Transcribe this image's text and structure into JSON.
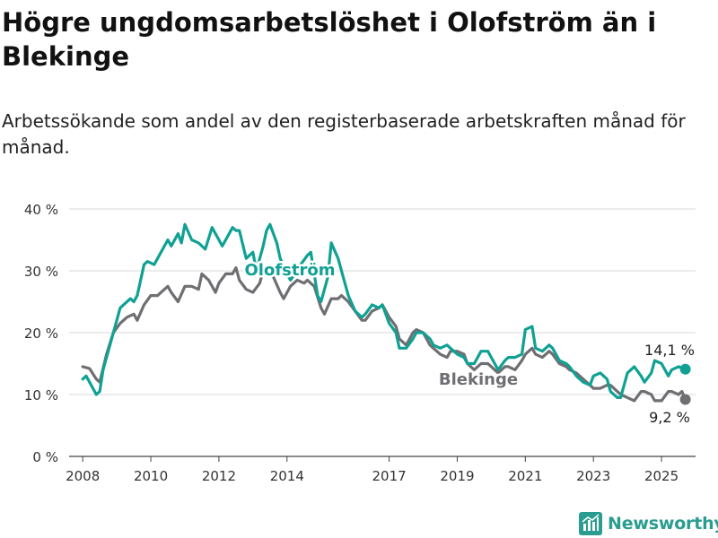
{
  "title": "Högre ungdomsarbetslöshet i Olofström än i Blekinge",
  "subtitle": "Arbetssökande som andel av den registerbaserade arbetskraften månad för månad.",
  "brand": {
    "name": "Newsworthy",
    "icon": "newsworthy-logo-icon"
  },
  "chart_data": {
    "type": "line",
    "x_unit": "year",
    "xlim": [
      2007.6,
      2026.0
    ],
    "ylim": [
      0,
      40
    ],
    "y_ticks": [
      0,
      10,
      20,
      30,
      40
    ],
    "y_tick_labels": [
      "0 %",
      "10 %",
      "20 %",
      "30 %",
      "40 %"
    ],
    "x_ticks": [
      2008,
      2010,
      2012,
      2014,
      2017,
      2019,
      2021,
      2023,
      2025
    ],
    "x_tick_labels": [
      "2008",
      "2010",
      "2012",
      "2014",
      "2017",
      "2019",
      "2021",
      "2023",
      "2025"
    ],
    "grid": "horizontal",
    "series": [
      {
        "name": "Blekinge",
        "color": "#6f6f73",
        "end_label": "9,2 %",
        "points": [
          [
            2008.0,
            14.5
          ],
          [
            2008.2,
            14.2
          ],
          [
            2008.4,
            12.5
          ],
          [
            2008.5,
            12.0
          ],
          [
            2008.7,
            16.5
          ],
          [
            2008.9,
            20.0
          ],
          [
            2009.1,
            21.5
          ],
          [
            2009.3,
            22.5
          ],
          [
            2009.5,
            23.0
          ],
          [
            2009.6,
            22.0
          ],
          [
            2009.8,
            24.5
          ],
          [
            2010.0,
            26.0
          ],
          [
            2010.2,
            26.0
          ],
          [
            2010.3,
            26.5
          ],
          [
            2010.5,
            27.5
          ],
          [
            2010.6,
            26.5
          ],
          [
            2010.8,
            25.0
          ],
          [
            2011.0,
            27.5
          ],
          [
            2011.2,
            27.5
          ],
          [
            2011.4,
            27.0
          ],
          [
            2011.5,
            29.5
          ],
          [
            2011.7,
            28.5
          ],
          [
            2011.9,
            26.5
          ],
          [
            2012.0,
            28.0
          ],
          [
            2012.2,
            29.5
          ],
          [
            2012.4,
            29.5
          ],
          [
            2012.5,
            30.5
          ],
          [
            2012.6,
            28.5
          ],
          [
            2012.8,
            27.0
          ],
          [
            2013.0,
            26.5
          ],
          [
            2013.2,
            28.0
          ],
          [
            2013.3,
            30.0
          ],
          [
            2013.5,
            30.0
          ],
          [
            2013.6,
            29.0
          ],
          [
            2013.8,
            26.5
          ],
          [
            2013.9,
            25.5
          ],
          [
            2014.1,
            27.5
          ],
          [
            2014.3,
            28.5
          ],
          [
            2014.5,
            28.0
          ],
          [
            2014.6,
            28.5
          ],
          [
            2014.8,
            27.5
          ],
          [
            2015.0,
            24.0
          ],
          [
            2015.1,
            23.0
          ],
          [
            2015.3,
            25.5
          ],
          [
            2015.5,
            25.5
          ],
          [
            2015.6,
            26.0
          ],
          [
            2015.8,
            25.0
          ],
          [
            2016.0,
            23.5
          ],
          [
            2016.2,
            22.0
          ],
          [
            2016.3,
            22.0
          ],
          [
            2016.5,
            23.5
          ],
          [
            2016.7,
            24.0
          ],
          [
            2016.8,
            24.5
          ],
          [
            2017.0,
            22.5
          ],
          [
            2017.2,
            21.0
          ],
          [
            2017.3,
            19.0
          ],
          [
            2017.5,
            18.0
          ],
          [
            2017.7,
            20.0
          ],
          [
            2017.8,
            20.5
          ],
          [
            2018.0,
            20.0
          ],
          [
            2018.2,
            18.0
          ],
          [
            2018.3,
            17.5
          ],
          [
            2018.5,
            16.5
          ],
          [
            2018.7,
            16.0
          ],
          [
            2018.8,
            17.0
          ],
          [
            2019.0,
            17.0
          ],
          [
            2019.2,
            16.5
          ],
          [
            2019.3,
            15.0
          ],
          [
            2019.5,
            14.0
          ],
          [
            2019.7,
            15.0
          ],
          [
            2019.9,
            15.0
          ],
          [
            2020.0,
            14.5
          ],
          [
            2020.2,
            13.5
          ],
          [
            2020.4,
            14.5
          ],
          [
            2020.5,
            14.5
          ],
          [
            2020.7,
            14.0
          ],
          [
            2020.9,
            15.5
          ],
          [
            2021.0,
            16.5
          ],
          [
            2021.2,
            17.5
          ],
          [
            2021.3,
            16.5
          ],
          [
            2021.5,
            16.0
          ],
          [
            2021.7,
            17.0
          ],
          [
            2021.8,
            16.5
          ],
          [
            2022.0,
            15.0
          ],
          [
            2022.2,
            14.5
          ],
          [
            2022.3,
            14.0
          ],
          [
            2022.5,
            13.5
          ],
          [
            2022.7,
            12.5
          ],
          [
            2022.9,
            11.5
          ],
          [
            2023.0,
            11.0
          ],
          [
            2023.2,
            11.0
          ],
          [
            2023.4,
            11.5
          ],
          [
            2023.5,
            11.5
          ],
          [
            2023.7,
            10.5
          ],
          [
            2023.8,
            10.0
          ],
          [
            2024.0,
            9.5
          ],
          [
            2024.2,
            9.0
          ],
          [
            2024.4,
            10.5
          ],
          [
            2024.5,
            10.5
          ],
          [
            2024.7,
            10.0
          ],
          [
            2024.8,
            9.0
          ],
          [
            2025.0,
            9.0
          ],
          [
            2025.2,
            10.5
          ],
          [
            2025.3,
            10.5
          ],
          [
            2025.5,
            10.0
          ],
          [
            2025.6,
            10.5
          ],
          [
            2025.7,
            9.2
          ]
        ]
      },
      {
        "name": "Olofström",
        "color": "#10a194",
        "end_label": "14,1 %",
        "points": [
          [
            2008.0,
            12.5
          ],
          [
            2008.1,
            13.0
          ],
          [
            2008.3,
            11.0
          ],
          [
            2008.4,
            10.0
          ],
          [
            2008.5,
            10.5
          ],
          [
            2008.6,
            14.0
          ],
          [
            2008.8,
            18.0
          ],
          [
            2008.9,
            20.0
          ],
          [
            2009.1,
            24.0
          ],
          [
            2009.2,
            24.5
          ],
          [
            2009.4,
            25.5
          ],
          [
            2009.5,
            25.0
          ],
          [
            2009.6,
            26.0
          ],
          [
            2009.8,
            31.0
          ],
          [
            2009.9,
            31.5
          ],
          [
            2010.1,
            31.0
          ],
          [
            2010.2,
            32.0
          ],
          [
            2010.4,
            34.0
          ],
          [
            2010.5,
            35.0
          ],
          [
            2010.6,
            34.0
          ],
          [
            2010.8,
            36.0
          ],
          [
            2010.9,
            34.5
          ],
          [
            2011.0,
            37.5
          ],
          [
            2011.2,
            35.0
          ],
          [
            2011.4,
            34.5
          ],
          [
            2011.5,
            34.0
          ],
          [
            2011.6,
            33.5
          ],
          [
            2011.8,
            37.0
          ],
          [
            2011.9,
            36.0
          ],
          [
            2012.1,
            34.0
          ],
          [
            2012.2,
            35.0
          ],
          [
            2012.4,
            37.0
          ],
          [
            2012.5,
            36.5
          ],
          [
            2012.6,
            36.5
          ],
          [
            2012.8,
            32.0
          ],
          [
            2013.0,
            33.0
          ],
          [
            2013.1,
            30.0
          ],
          [
            2013.3,
            34.0
          ],
          [
            2013.4,
            36.5
          ],
          [
            2013.5,
            37.5
          ],
          [
            2013.7,
            34.5
          ],
          [
            2013.8,
            32.0
          ],
          [
            2014.0,
            29.5
          ],
          [
            2014.1,
            28.5
          ],
          [
            2014.3,
            30.0
          ],
          [
            2014.4,
            31.0
          ],
          [
            2014.6,
            32.5
          ],
          [
            2014.7,
            33.0
          ],
          [
            2014.9,
            26.0
          ],
          [
            2015.0,
            25.0
          ],
          [
            2015.2,
            29.0
          ],
          [
            2015.3,
            34.5
          ],
          [
            2015.5,
            32.0
          ],
          [
            2015.6,
            30.0
          ],
          [
            2015.8,
            26.0
          ],
          [
            2016.0,
            23.5
          ],
          [
            2016.2,
            22.5
          ],
          [
            2016.3,
            23.0
          ],
          [
            2016.5,
            24.5
          ],
          [
            2016.7,
            24.0
          ],
          [
            2016.8,
            24.5
          ],
          [
            2017.0,
            21.5
          ],
          [
            2017.2,
            20.0
          ],
          [
            2017.3,
            17.5
          ],
          [
            2017.5,
            17.5
          ],
          [
            2017.7,
            19.0
          ],
          [
            2017.8,
            20.0
          ],
          [
            2018.0,
            20.0
          ],
          [
            2018.2,
            19.0
          ],
          [
            2018.3,
            18.0
          ],
          [
            2018.5,
            17.5
          ],
          [
            2018.7,
            18.0
          ],
          [
            2018.8,
            17.5
          ],
          [
            2019.0,
            16.5
          ],
          [
            2019.2,
            16.0
          ],
          [
            2019.3,
            15.0
          ],
          [
            2019.5,
            15.0
          ],
          [
            2019.7,
            17.0
          ],
          [
            2019.9,
            17.0
          ],
          [
            2020.0,
            16.0
          ],
          [
            2020.2,
            14.0
          ],
          [
            2020.4,
            15.5
          ],
          [
            2020.5,
            16.0
          ],
          [
            2020.7,
            16.0
          ],
          [
            2020.9,
            16.5
          ],
          [
            2021.0,
            20.5
          ],
          [
            2021.2,
            21.0
          ],
          [
            2021.3,
            17.5
          ],
          [
            2021.5,
            17.0
          ],
          [
            2021.7,
            18.0
          ],
          [
            2021.8,
            17.5
          ],
          [
            2022.0,
            15.5
          ],
          [
            2022.2,
            15.0
          ],
          [
            2022.3,
            14.5
          ],
          [
            2022.5,
            13.0
          ],
          [
            2022.7,
            12.0
          ],
          [
            2022.9,
            11.5
          ],
          [
            2023.0,
            13.0
          ],
          [
            2023.2,
            13.5
          ],
          [
            2023.4,
            12.5
          ],
          [
            2023.5,
            10.5
          ],
          [
            2023.7,
            9.5
          ],
          [
            2023.8,
            9.5
          ],
          [
            2024.0,
            13.5
          ],
          [
            2024.2,
            14.5
          ],
          [
            2024.4,
            13.0
          ],
          [
            2024.5,
            12.0
          ],
          [
            2024.7,
            13.5
          ],
          [
            2024.8,
            15.5
          ],
          [
            2025.0,
            15.0
          ],
          [
            2025.2,
            13.0
          ],
          [
            2025.3,
            14.0
          ],
          [
            2025.5,
            14.5
          ],
          [
            2025.7,
            14.1
          ]
        ]
      }
    ]
  }
}
